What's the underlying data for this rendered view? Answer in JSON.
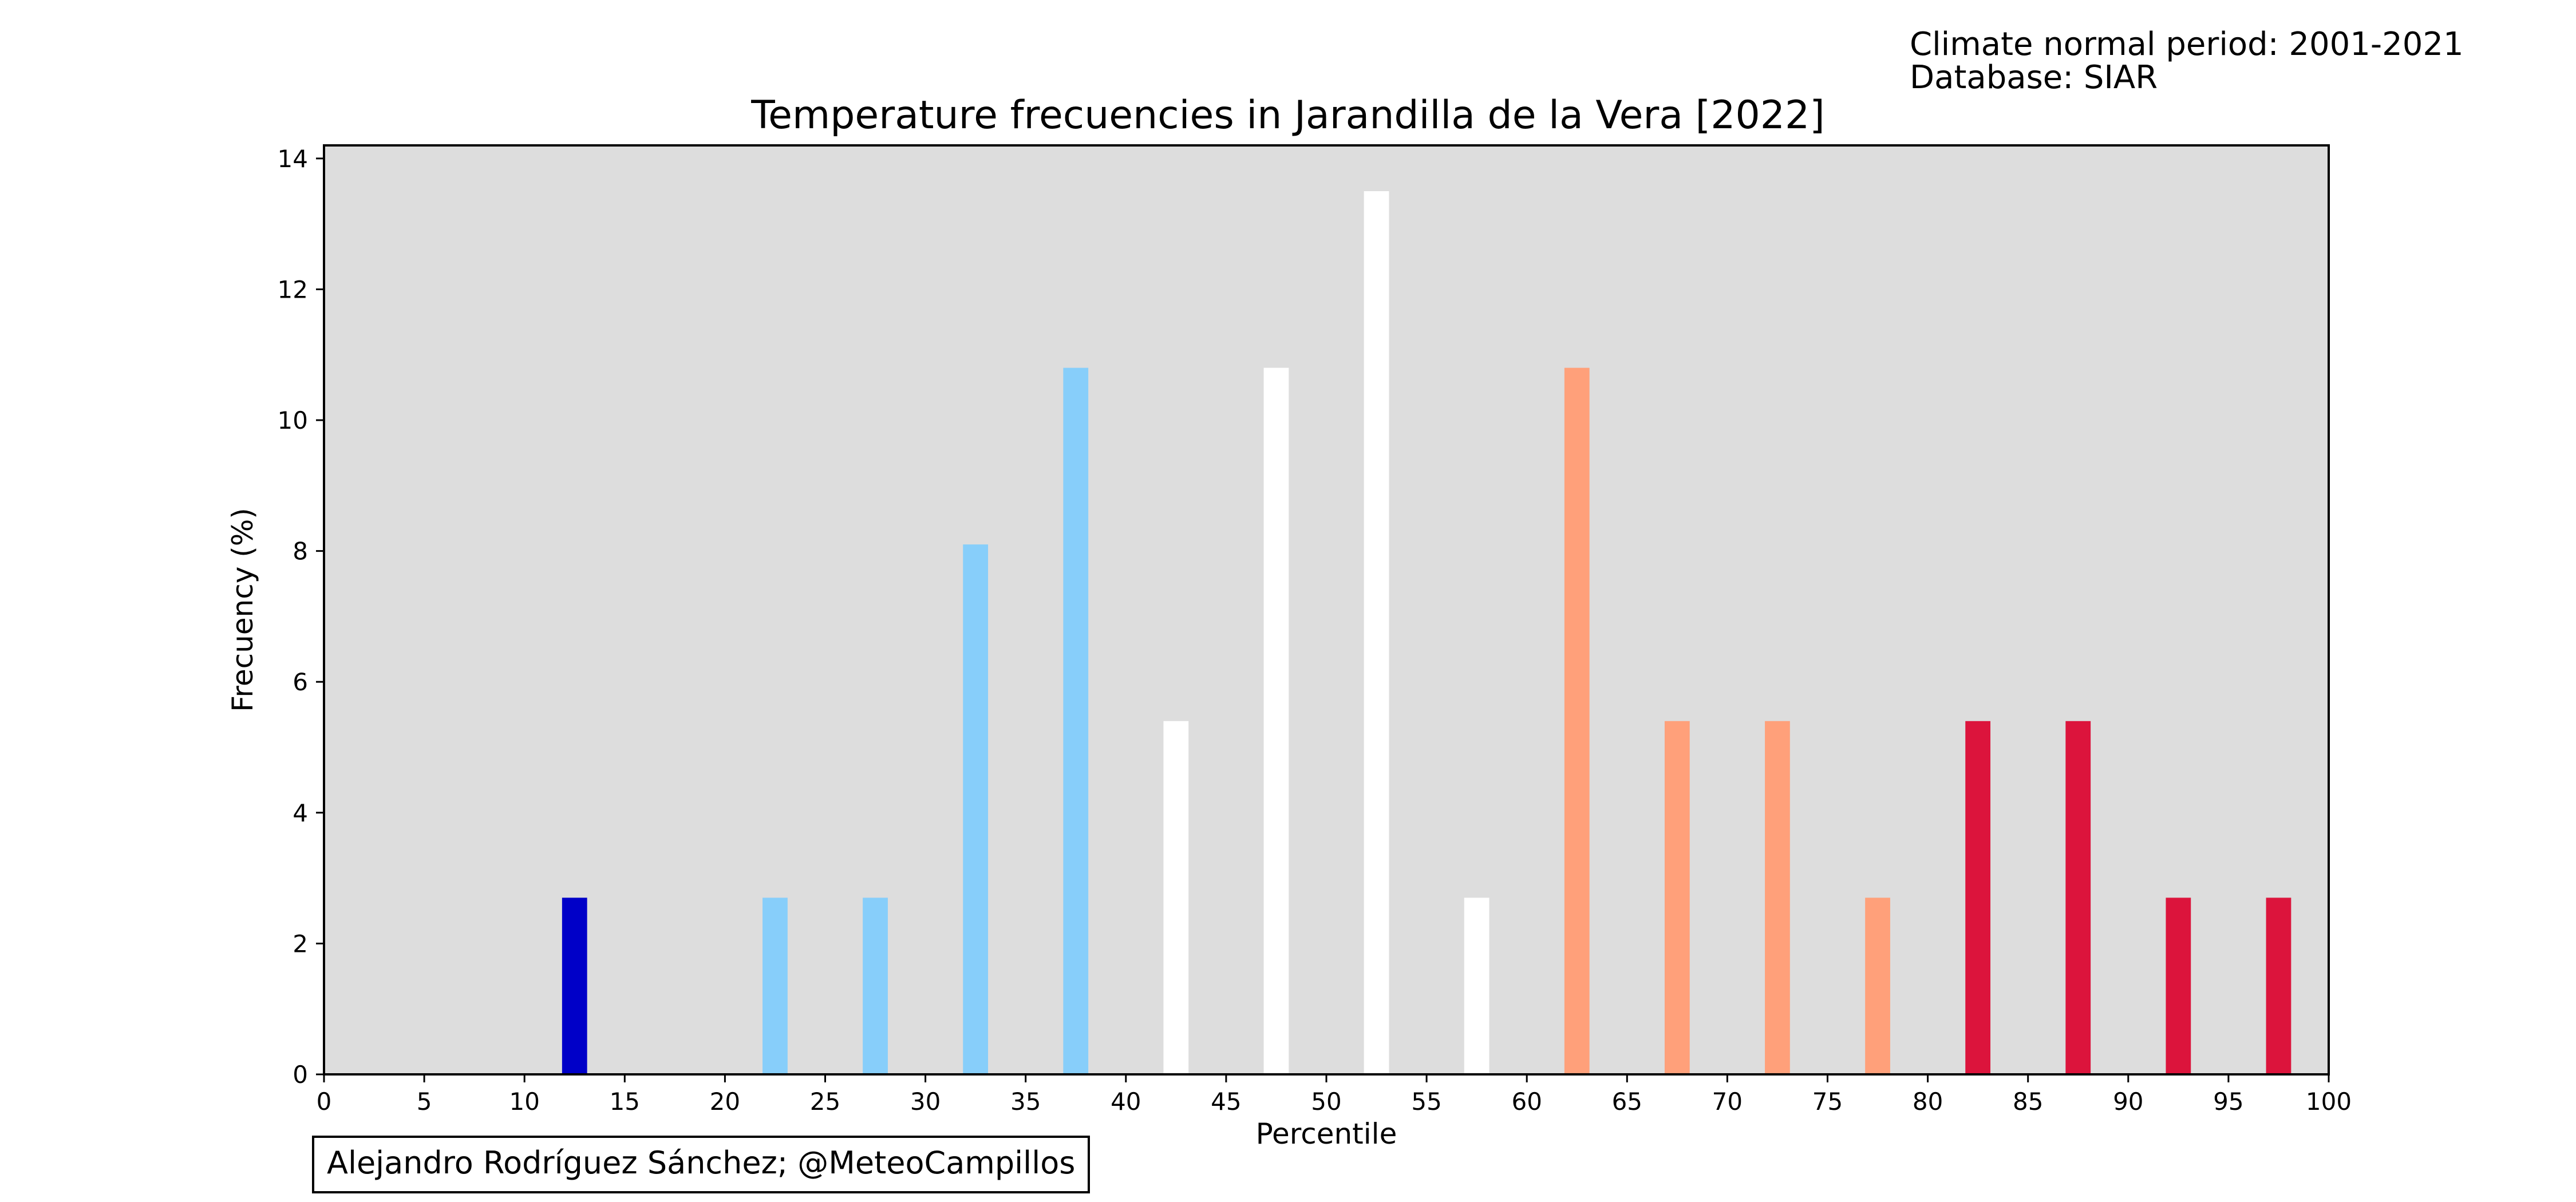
{
  "header": {
    "normal_period": "Climate normal period: 2001-2021",
    "database": "Database: SIAR"
  },
  "credit": "Alejandro Rodríguez Sánchez; @MeteoCampillos",
  "chart_data": {
    "type": "bar",
    "title": "Temperature frecuencies in Jarandilla de la Vera [2022]",
    "xlabel": "Percentile",
    "ylabel": "Frecuency (%)",
    "xlim": [
      0,
      100
    ],
    "ylim": [
      0,
      14.2
    ],
    "xticks": [
      0,
      5,
      10,
      15,
      20,
      25,
      30,
      35,
      40,
      45,
      50,
      55,
      60,
      65,
      70,
      75,
      80,
      85,
      90,
      95,
      100
    ],
    "yticks": [
      0,
      2,
      4,
      6,
      8,
      10,
      12,
      14
    ],
    "grid": false,
    "background": "#dddddd",
    "bars": [
      {
        "x": 12.5,
        "value": 2.7,
        "color": "#0000c8"
      },
      {
        "x": 22.5,
        "value": 2.7,
        "color": "#87cefa"
      },
      {
        "x": 27.5,
        "value": 2.7,
        "color": "#87cefa"
      },
      {
        "x": 32.5,
        "value": 8.1,
        "color": "#87cefa"
      },
      {
        "x": 37.5,
        "value": 10.8,
        "color": "#87cefa"
      },
      {
        "x": 42.5,
        "value": 5.4,
        "color": "#ffffff"
      },
      {
        "x": 47.5,
        "value": 10.8,
        "color": "#ffffff"
      },
      {
        "x": 52.5,
        "value": 13.5,
        "color": "#ffffff"
      },
      {
        "x": 57.5,
        "value": 2.7,
        "color": "#ffffff"
      },
      {
        "x": 62.5,
        "value": 10.8,
        "color": "#ffa07a"
      },
      {
        "x": 67.5,
        "value": 5.4,
        "color": "#ffa07a"
      },
      {
        "x": 72.5,
        "value": 5.4,
        "color": "#ffa07a"
      },
      {
        "x": 77.5,
        "value": 2.7,
        "color": "#ffa07a"
      },
      {
        "x": 82.5,
        "value": 5.4,
        "color": "#dc143c"
      },
      {
        "x": 87.5,
        "value": 5.4,
        "color": "#dc143c"
      },
      {
        "x": 92.5,
        "value": 2.7,
        "color": "#dc143c"
      },
      {
        "x": 97.5,
        "value": 2.7,
        "color": "#dc143c"
      }
    ],
    "bar_width": 1.25
  }
}
